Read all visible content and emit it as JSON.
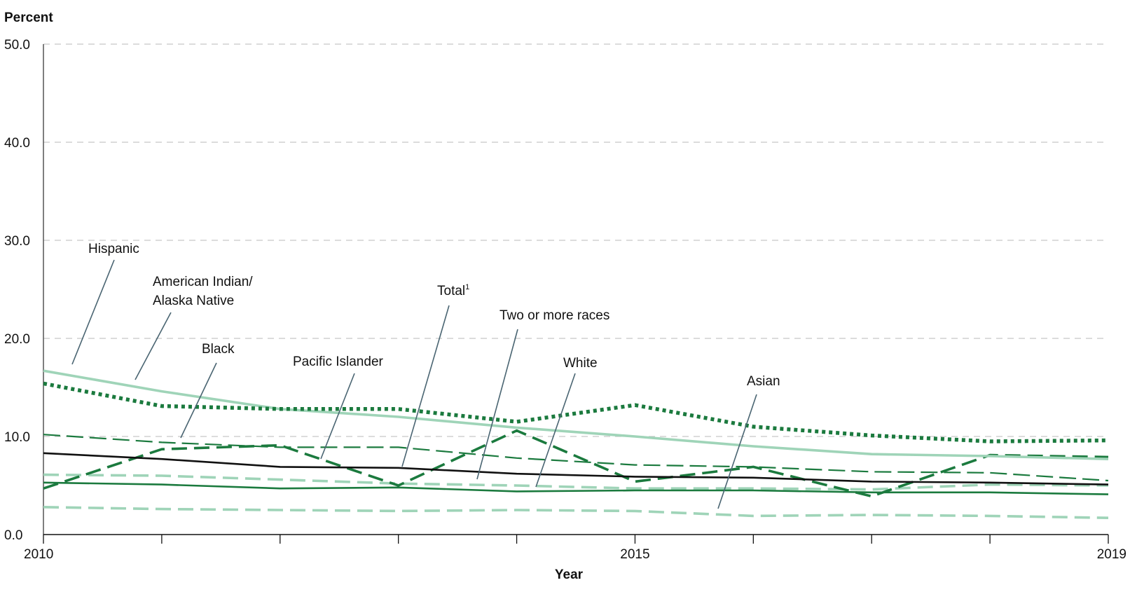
{
  "chart_data": {
    "type": "line",
    "xlabel": "Year",
    "ylabel": "Percent",
    "ylim": [
      0,
      50
    ],
    "xlim": [
      2010,
      2019
    ],
    "y_ticks": [
      "0.0",
      "10.0",
      "20.0",
      "30.0",
      "40.0",
      "50.0"
    ],
    "x_tick_labels": [
      {
        "x": 2010,
        "label": "2010"
      },
      {
        "x": 2015,
        "label": "2015"
      },
      {
        "x": 2019,
        "label": "2019"
      }
    ],
    "x_ticks": [
      2010,
      2011,
      2012,
      2013,
      2014,
      2015,
      2016,
      2017,
      2018,
      2019
    ],
    "grid": "horizontal dashed",
    "legend": "none (direct labels)",
    "x": [
      2010,
      2011,
      2012,
      2013,
      2014,
      2015,
      2016,
      2017,
      2018,
      2019
    ],
    "series": [
      {
        "name": "Hispanic",
        "values": [
          16.7,
          14.6,
          12.8,
          12.0,
          10.9,
          10.0,
          9.0,
          8.2,
          8.0,
          7.7
        ],
        "color": "#9fd4b8",
        "style": "solid-thick"
      },
      {
        "name": "American Indian/ Alaska Native",
        "line1": "American Indian/",
        "line2": "Alaska Native",
        "values": [
          15.4,
          13.1,
          12.8,
          12.8,
          11.5,
          13.2,
          11.0,
          10.1,
          9.5,
          9.6
        ],
        "color": "#1b7a3e",
        "style": "dotted"
      },
      {
        "name": "Black",
        "values": [
          10.2,
          9.4,
          8.9,
          8.9,
          7.8,
          7.1,
          6.9,
          6.4,
          6.3,
          5.5
        ],
        "color": "#1b7a3e",
        "style": "dashed-thin"
      },
      {
        "name": "Pacific Islander",
        "values": [
          4.7,
          8.7,
          9.1,
          5.0,
          10.6,
          5.4,
          6.9,
          3.9,
          8.1,
          7.9
        ],
        "color": "#1b7a3e",
        "style": "dashed-thick"
      },
      {
        "name": "Total",
        "sup": "1",
        "values": [
          8.3,
          7.7,
          6.9,
          6.8,
          6.2,
          5.9,
          5.8,
          5.4,
          5.3,
          5.1
        ],
        "color": "#111111",
        "style": "solid"
      },
      {
        "name": "Two or more races",
        "values": [
          6.1,
          6.0,
          5.6,
          5.2,
          5.0,
          4.7,
          4.7,
          4.6,
          5.1,
          5.0
        ],
        "color": "#9fd4b8",
        "style": "dashed-thick"
      },
      {
        "name": "White",
        "values": [
          5.3,
          5.1,
          4.7,
          4.8,
          4.4,
          4.5,
          4.5,
          4.3,
          4.3,
          4.1
        ],
        "color": "#1b7a3e",
        "style": "solid"
      },
      {
        "name": "Asian",
        "values": [
          2.8,
          2.6,
          2.5,
          2.4,
          2.5,
          2.4,
          1.9,
          2.0,
          1.9,
          1.7
        ],
        "color": "#9fd4b8",
        "style": "dashed-thick"
      }
    ]
  }
}
